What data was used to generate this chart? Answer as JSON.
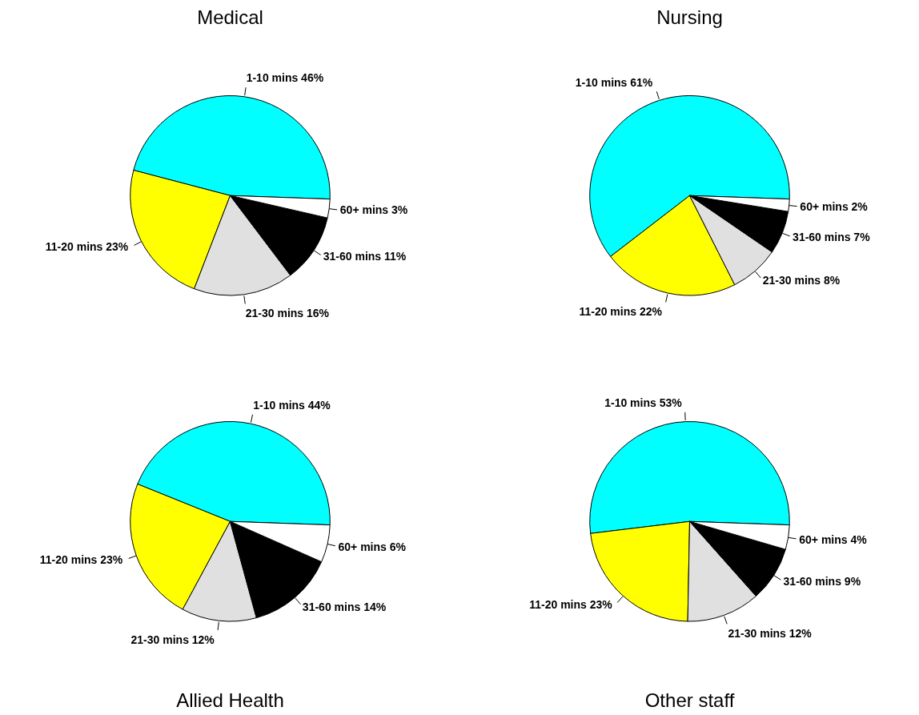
{
  "chart_data": [
    {
      "type": "pie",
      "title": "Medical",
      "categories": [
        "1-10 mins",
        "11-20 mins",
        "21-30 mins",
        "31-60 mins",
        "60+ mins"
      ],
      "values": [
        46,
        23,
        16,
        11,
        3
      ],
      "value_labels": [
        "46%",
        "23%",
        "16%",
        "11%",
        "3%"
      ],
      "colors": [
        "#00ffff",
        "#ffff00",
        "#e0e0e0",
        "#000000",
        "#ffffff"
      ]
    },
    {
      "type": "pie",
      "title": "Nursing",
      "categories": [
        "1-10 mins",
        "11-20 mins",
        "21-30 mins",
        "31-60 mins",
        "60+ mins"
      ],
      "values": [
        61,
        22,
        8,
        7,
        2
      ],
      "value_labels": [
        "61%",
        "22%",
        "8%",
        "7%",
        "2%"
      ],
      "colors": [
        "#00ffff",
        "#ffff00",
        "#e0e0e0",
        "#000000",
        "#ffffff"
      ]
    },
    {
      "type": "pie",
      "title": "Allied Health",
      "categories": [
        "1-10 mins",
        "11-20 mins",
        "21-30 mins",
        "31-60 mins",
        "60+ mins"
      ],
      "values": [
        44,
        23,
        12,
        14,
        6
      ],
      "value_labels": [
        "44%",
        "23%",
        "12%",
        "14%",
        "6%"
      ],
      "colors": [
        "#00ffff",
        "#ffff00",
        "#e0e0e0",
        "#000000",
        "#ffffff"
      ]
    },
    {
      "type": "pie",
      "title": "Other staff",
      "categories": [
        "1-10 mins",
        "11-20 mins",
        "21-30 mins",
        "31-60 mins",
        "60+ mins"
      ],
      "values": [
        53,
        23,
        12,
        9,
        4
      ],
      "value_labels": [
        "53%",
        "23%",
        "12%",
        "9%",
        "4%"
      ],
      "colors": [
        "#00ffff",
        "#ffff00",
        "#e0e0e0",
        "#000000",
        "#ffffff"
      ]
    }
  ]
}
